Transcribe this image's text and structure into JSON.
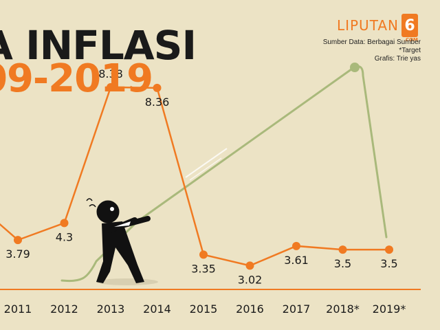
{
  "header": {
    "title_line1": "A INFLASI",
    "title_line2": "09-2019",
    "brand": "LIPUTAN",
    "brand_number": "6",
    "brand_suffix": ".COM",
    "source": "Sumber Data: Berbagai Sumber",
    "target_note": "*Target",
    "credit": "Grafis: Trie yas"
  },
  "colors": {
    "background": "#ece3c5",
    "line": "#f07a22",
    "rope": "#a9b97b",
    "figure": "#111111"
  },
  "chart_data": {
    "type": "line",
    "title": "",
    "xlabel": "",
    "ylabel": "",
    "categories": [
      "2011",
      "2012",
      "2013",
      "2014",
      "2015",
      "2016",
      "2017",
      "2018*",
      "2019*"
    ],
    "values": [
      3.79,
      4.3,
      8.38,
      8.36,
      3.35,
      3.02,
      3.61,
      3.5,
      3.5
    ],
    "value_labels": [
      "3.79",
      "4.3",
      "8.38",
      "8.36",
      "3.35",
      "3.02",
      "3.61",
      "3.5",
      "3.5"
    ],
    "partial_prior_point": true,
    "grid": false,
    "legend": "none",
    "ylim": [
      1.5,
      11
    ]
  }
}
